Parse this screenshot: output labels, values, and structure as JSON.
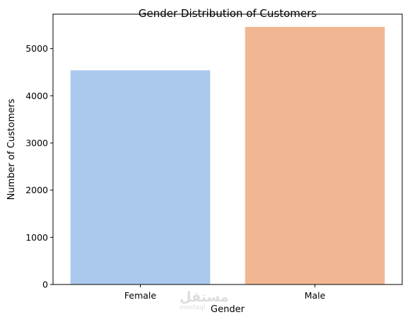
{
  "chart_data": {
    "type": "bar",
    "title": "Gender Distribution of Customers",
    "xlabel": "Gender",
    "ylabel": "Number of Customers",
    "categories": [
      "Female",
      "Male"
    ],
    "values": [
      4540,
      5460
    ],
    "colors": [
      "#abc9ed",
      "#f1b792"
    ],
    "ylim": [
      0,
      5730
    ],
    "yticks": [
      0,
      1000,
      2000,
      3000,
      4000,
      5000
    ],
    "grid": false,
    "legend": "none"
  },
  "watermark": {
    "arabic": "مستقل",
    "latin": "mostaql"
  }
}
